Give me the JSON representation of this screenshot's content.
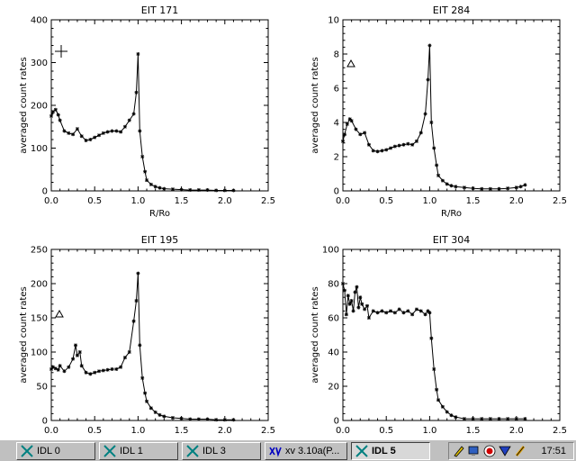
{
  "chart_data": [
    {
      "type": "line",
      "title": "EIT 171",
      "xlabel": "R/Ro",
      "ylabel": "averaged count rates",
      "xlim": [
        0.0,
        2.5
      ],
      "ylim": [
        0,
        400
      ],
      "xticks": [
        "0.0",
        "0.5",
        "1.0",
        "1.5",
        "2.0",
        "2.5"
      ],
      "yticks": [
        "0",
        "100",
        "200",
        "300",
        "400"
      ],
      "legend_symbol": "plus",
      "x": [
        0.0,
        0.02,
        0.05,
        0.08,
        0.1,
        0.15,
        0.2,
        0.25,
        0.3,
        0.35,
        0.4,
        0.45,
        0.5,
        0.55,
        0.6,
        0.65,
        0.7,
        0.75,
        0.8,
        0.85,
        0.9,
        0.95,
        0.98,
        1.0,
        1.02,
        1.05,
        1.08,
        1.1,
        1.15,
        1.2,
        1.25,
        1.3,
        1.4,
        1.5,
        1.6,
        1.7,
        1.8,
        1.9,
        2.0,
        2.1
      ],
      "y": [
        175,
        185,
        190,
        178,
        165,
        140,
        135,
        132,
        145,
        128,
        118,
        120,
        125,
        130,
        135,
        138,
        140,
        140,
        138,
        150,
        165,
        180,
        230,
        320,
        140,
        80,
        45,
        25,
        15,
        10,
        7,
        5,
        4,
        3,
        2,
        2,
        2,
        1,
        1,
        1
      ]
    },
    {
      "type": "line",
      "title": "EIT 284",
      "xlabel": "R/Ro",
      "ylabel": "averaged count rates",
      "xlim": [
        0.0,
        2.5
      ],
      "ylim": [
        0,
        10
      ],
      "xticks": [
        "0.0",
        "0.5",
        "1.0",
        "1.5",
        "2.0",
        "2.5"
      ],
      "yticks": [
        "0",
        "2",
        "4",
        "6",
        "8",
        "10"
      ],
      "legend_symbol": "triangle",
      "x": [
        0.0,
        0.02,
        0.05,
        0.08,
        0.1,
        0.15,
        0.2,
        0.25,
        0.3,
        0.35,
        0.4,
        0.45,
        0.5,
        0.55,
        0.6,
        0.65,
        0.7,
        0.75,
        0.8,
        0.85,
        0.9,
        0.95,
        0.98,
        1.0,
        1.02,
        1.05,
        1.08,
        1.1,
        1.15,
        1.2,
        1.25,
        1.3,
        1.4,
        1.5,
        1.6,
        1.7,
        1.8,
        1.9,
        2.0,
        2.05,
        2.1
      ],
      "y": [
        2.9,
        3.3,
        3.9,
        4.2,
        4.1,
        3.6,
        3.3,
        3.4,
        2.7,
        2.35,
        2.3,
        2.35,
        2.4,
        2.5,
        2.6,
        2.65,
        2.7,
        2.75,
        2.7,
        2.9,
        3.4,
        4.5,
        6.5,
        8.5,
        4.0,
        2.5,
        1.5,
        0.9,
        0.6,
        0.4,
        0.3,
        0.25,
        0.2,
        0.15,
        0.12,
        0.12,
        0.12,
        0.15,
        0.2,
        0.25,
        0.35
      ]
    },
    {
      "type": "line",
      "title": "EIT 195",
      "xlabel": "",
      "ylabel": "averaged count rates",
      "xlim": [
        0.0,
        2.5
      ],
      "ylim": [
        0,
        250
      ],
      "xticks": [
        "0.0",
        "0.5",
        "1.0",
        "1.5",
        "2.0",
        "2.5"
      ],
      "yticks": [
        "0",
        "50",
        "100",
        "150",
        "200",
        "250"
      ],
      "legend_symbol": "triangle",
      "x": [
        0.0,
        0.02,
        0.05,
        0.08,
        0.1,
        0.15,
        0.2,
        0.25,
        0.28,
        0.3,
        0.33,
        0.35,
        0.4,
        0.45,
        0.5,
        0.55,
        0.6,
        0.65,
        0.7,
        0.75,
        0.8,
        0.85,
        0.9,
        0.95,
        0.98,
        1.0,
        1.02,
        1.05,
        1.08,
        1.1,
        1.15,
        1.2,
        1.25,
        1.3,
        1.4,
        1.5,
        1.6,
        1.7,
        1.8,
        1.9,
        2.0,
        2.1
      ],
      "y": [
        75,
        78,
        76,
        74,
        80,
        72,
        78,
        90,
        110,
        95,
        100,
        80,
        70,
        68,
        70,
        72,
        73,
        74,
        75,
        75,
        78,
        92,
        100,
        145,
        175,
        215,
        110,
        62,
        40,
        28,
        18,
        12,
        8,
        6,
        4,
        3,
        2,
        2,
        2,
        1,
        1,
        1
      ]
    },
    {
      "type": "line",
      "title": "EIT 304",
      "xlabel": "",
      "ylabel": "averaged count rates",
      "xlim": [
        0.0,
        2.5
      ],
      "ylim": [
        0,
        100
      ],
      "xticks": [
        "0.0",
        "0.5",
        "1.0",
        "1.5",
        "2.0",
        "2.5"
      ],
      "yticks": [
        "0",
        "20",
        "40",
        "60",
        "80",
        "100"
      ],
      "legend_symbol": "",
      "x": [
        0.0,
        0.02,
        0.04,
        0.06,
        0.08,
        0.1,
        0.12,
        0.14,
        0.16,
        0.18,
        0.2,
        0.22,
        0.25,
        0.28,
        0.3,
        0.35,
        0.4,
        0.45,
        0.5,
        0.55,
        0.6,
        0.65,
        0.7,
        0.75,
        0.8,
        0.85,
        0.9,
        0.95,
        0.98,
        1.0,
        1.02,
        1.05,
        1.08,
        1.1,
        1.15,
        1.2,
        1.25,
        1.3,
        1.4,
        1.5,
        1.6,
        1.7,
        1.8,
        1.9,
        2.0,
        2.1
      ],
      "y": [
        80,
        76,
        62,
        73,
        68,
        70,
        64,
        75,
        78,
        66,
        72,
        68,
        65,
        67,
        60,
        64,
        63,
        64,
        63,
        64,
        63,
        65,
        63,
        64,
        62,
        65,
        64,
        62,
        64,
        63,
        48,
        30,
        18,
        12,
        8,
        5,
        3,
        2,
        1,
        1,
        1,
        1,
        1,
        1,
        1,
        1
      ]
    }
  ],
  "taskbar": {
    "buttons": [
      {
        "label": "IDL 0"
      },
      {
        "label": "IDL 1"
      },
      {
        "label": "IDL 3"
      },
      {
        "label": "xv 3.10a(P..."
      },
      {
        "label": "IDL 5"
      }
    ],
    "active_label": "IDL 5",
    "clock": "17:51"
  }
}
